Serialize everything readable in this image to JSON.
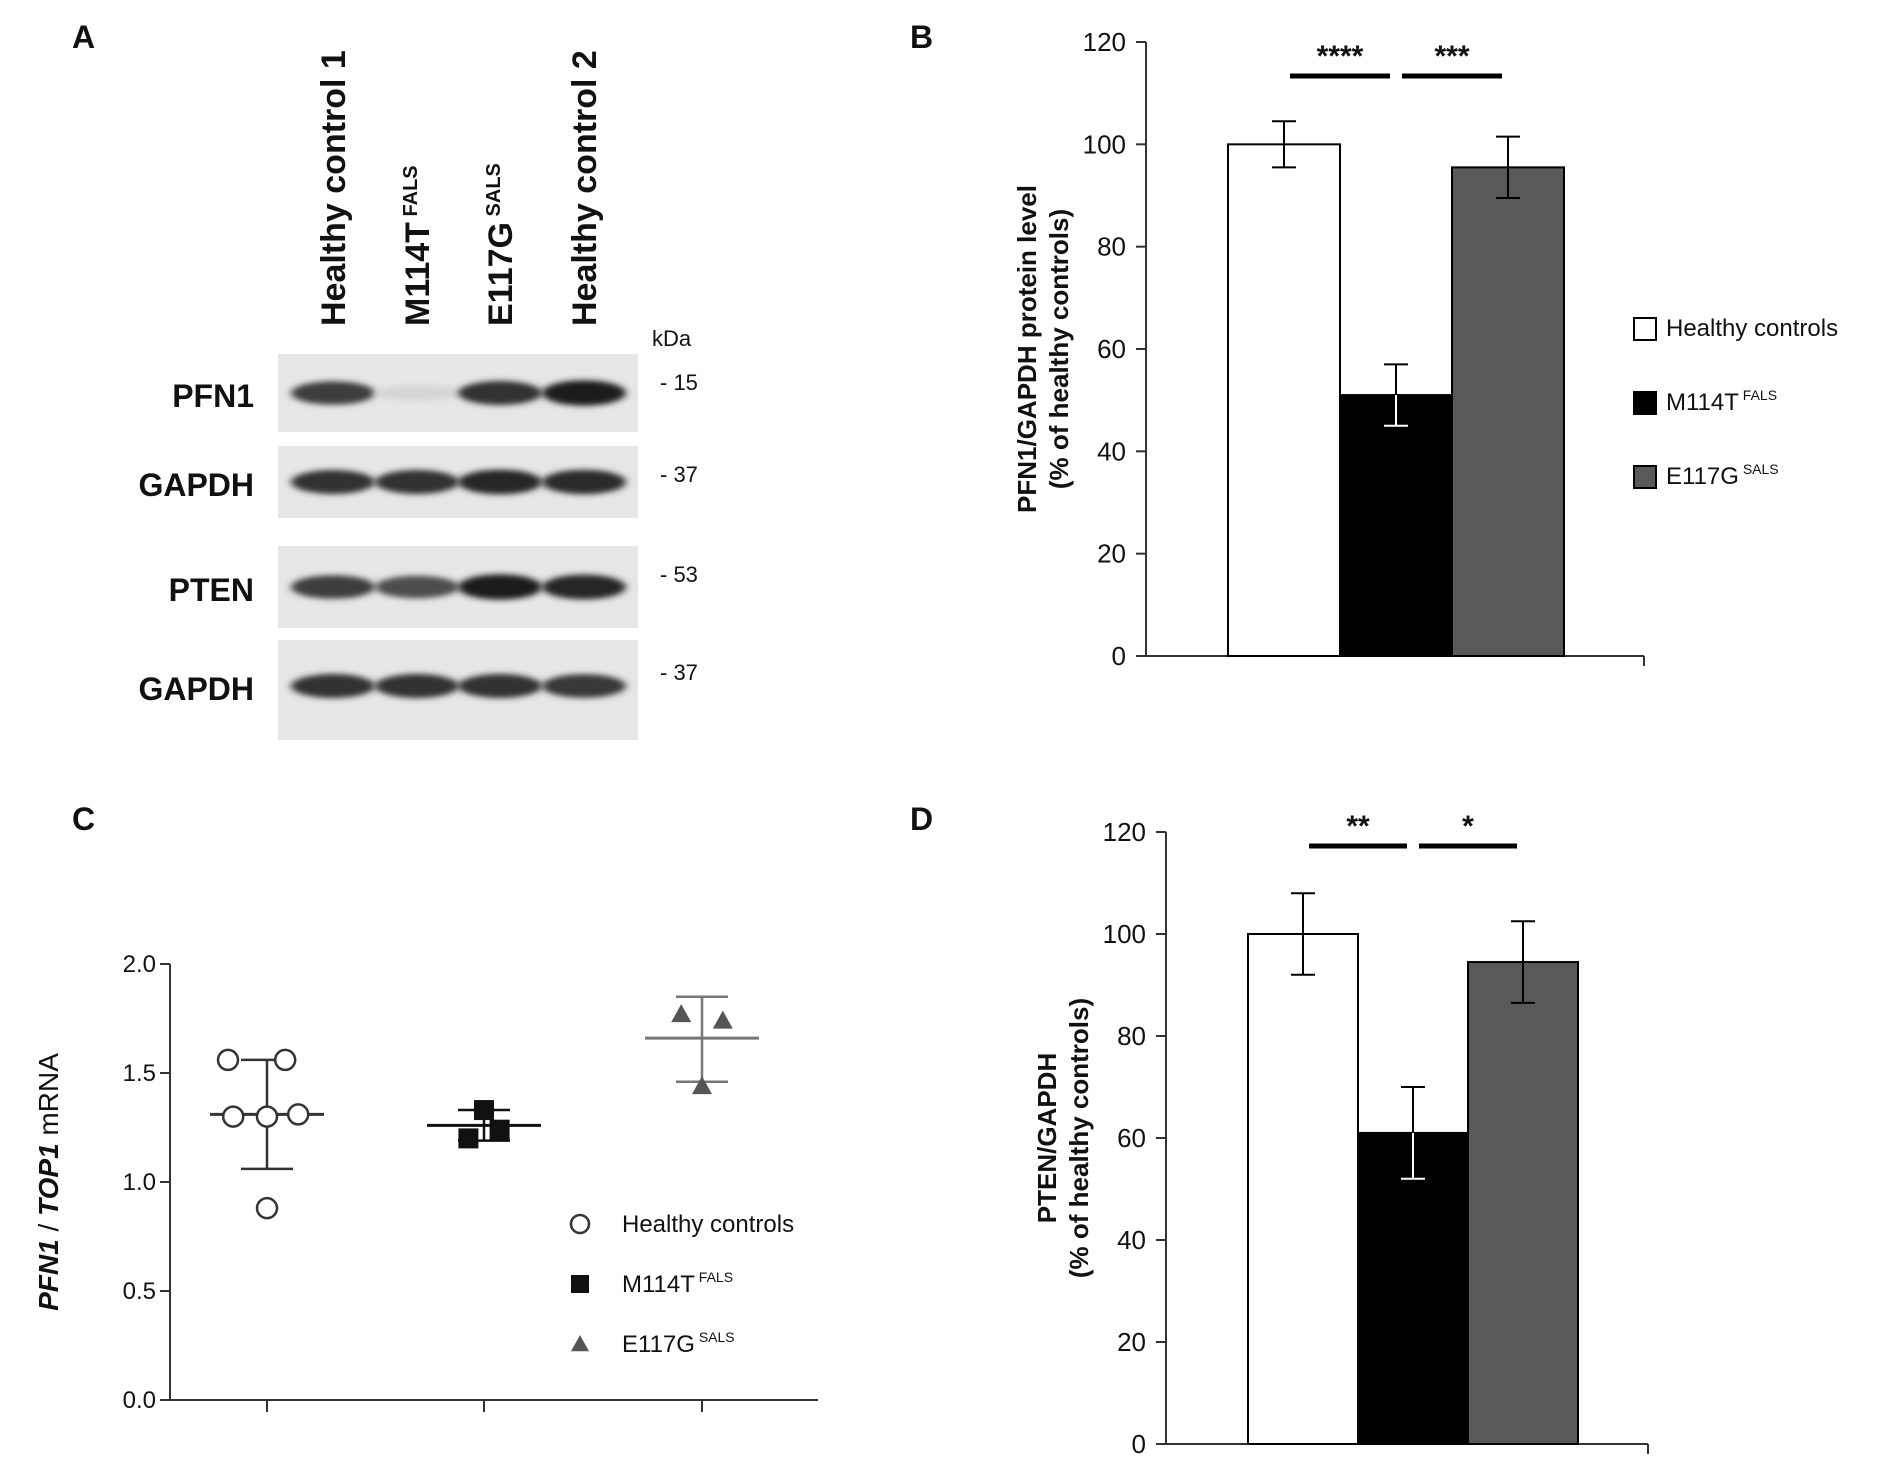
{
  "panels": {
    "A": {
      "letter": "A",
      "lanes": [
        "Healthy control 1",
        "M114T",
        "E117G",
        "Healthy control 2"
      ],
      "lane_superscripts": [
        "",
        "FALS",
        "SALS",
        ""
      ],
      "kda_header": "kDa",
      "blots": [
        {
          "protein": "PFN1",
          "kda": "- 15",
          "band_intensity": [
            0.8,
            0.12,
            0.85,
            0.95
          ]
        },
        {
          "protein": "GAPDH",
          "kda": "- 37",
          "band_intensity": [
            0.85,
            0.85,
            0.9,
            0.88
          ]
        },
        {
          "protein": "PTEN",
          "kda": "- 53",
          "band_intensity": [
            0.8,
            0.72,
            0.95,
            0.9
          ]
        },
        {
          "protein": "GAPDH",
          "kda": "- 37",
          "band_intensity": [
            0.85,
            0.85,
            0.85,
            0.82
          ]
        }
      ]
    },
    "B": {
      "letter": "B"
    },
    "C": {
      "letter": "C"
    },
    "D": {
      "letter": "D"
    }
  },
  "chart_data": [
    {
      "panel": "B",
      "type": "bar",
      "categories": [
        "Healthy controls",
        "M114T",
        "E117G"
      ],
      "category_superscripts": [
        "",
        "FALS",
        "SALS"
      ],
      "values": [
        100,
        51,
        95.5
      ],
      "errors": [
        4.5,
        6,
        6
      ],
      "ylabel": "PFN1/GAPDH protein level",
      "ylabel2": "(% of healthy controls)",
      "ylim": [
        0,
        120
      ],
      "yticks": [
        0,
        20,
        40,
        60,
        80,
        100,
        120
      ],
      "bar_colors": [
        "#ffffff",
        "#000000",
        "#595959"
      ],
      "significance": [
        {
          "from": 0,
          "to": 1,
          "label": "****"
        },
        {
          "from": 1,
          "to": 2,
          "label": "***"
        }
      ],
      "legend": {
        "placement": "right",
        "entries": [
          {
            "label": "Healthy controls",
            "sup": "",
            "color": "#ffffff"
          },
          {
            "label": "M114T",
            "sup": "FALS",
            "color": "#000000"
          },
          {
            "label": "E117G",
            "sup": "SALS",
            "color": "#595959"
          }
        ]
      }
    },
    {
      "panel": "C",
      "type": "scatter",
      "ylabel_parts": [
        "PFN1",
        " / ",
        "TOP1",
        " mRNA"
      ],
      "ylim": [
        0,
        2.0
      ],
      "yticks": [
        "0.0",
        "0.5",
        "1.0",
        "1.5",
        "2.0"
      ],
      "groups": [
        {
          "name": "Healthy controls",
          "sup": "",
          "marker": "circle",
          "points": [
            [
              -0.15,
              1.56
            ],
            [
              0.07,
              1.56
            ],
            [
              -0.13,
              1.3
            ],
            [
              0.0,
              1.3
            ],
            [
              0.12,
              1.31
            ],
            [
              0.0,
              0.88
            ]
          ],
          "mean": 1.31,
          "sd_upper": 1.56,
          "sd_lower": 1.06
        },
        {
          "name": "M114T",
          "sup": "FALS",
          "marker": "square",
          "points": [
            [
              0.0,
              1.33
            ],
            [
              -0.06,
              1.2
            ],
            [
              0.06,
              1.24
            ]
          ],
          "mean": 1.26,
          "sd_upper": 1.33,
          "sd_lower": 1.19
        },
        {
          "name": "E117G",
          "sup": "SALS",
          "marker": "triangle",
          "points": [
            [
              -0.08,
              1.77
            ],
            [
              0.08,
              1.74
            ],
            [
              0.0,
              1.44
            ]
          ],
          "mean": 1.66,
          "sd_upper": 1.85,
          "sd_lower": 1.46
        }
      ],
      "legend": {
        "placement": "bottom-right",
        "entries": [
          {
            "label": "Healthy controls",
            "sup": "",
            "marker": "circle"
          },
          {
            "label": "M114T",
            "sup": "FALS",
            "marker": "square"
          },
          {
            "label": "E117G",
            "sup": "SALS",
            "marker": "triangle"
          }
        ]
      }
    },
    {
      "panel": "D",
      "type": "bar",
      "categories": [
        "Healthy controls",
        "M114T",
        "E117G"
      ],
      "values": [
        100,
        61,
        94.5
      ],
      "errors": [
        8,
        9,
        8
      ],
      "ylabel": "PTEN/GAPDH",
      "ylabel2": "(% of healthy controls)",
      "ylim": [
        0,
        120
      ],
      "yticks": [
        0,
        20,
        40,
        60,
        80,
        100,
        120
      ],
      "bar_colors": [
        "#ffffff",
        "#000000",
        "#595959"
      ],
      "significance": [
        {
          "from": 0,
          "to": 1,
          "label": "**"
        },
        {
          "from": 1,
          "to": 2,
          "label": "*"
        }
      ]
    }
  ]
}
